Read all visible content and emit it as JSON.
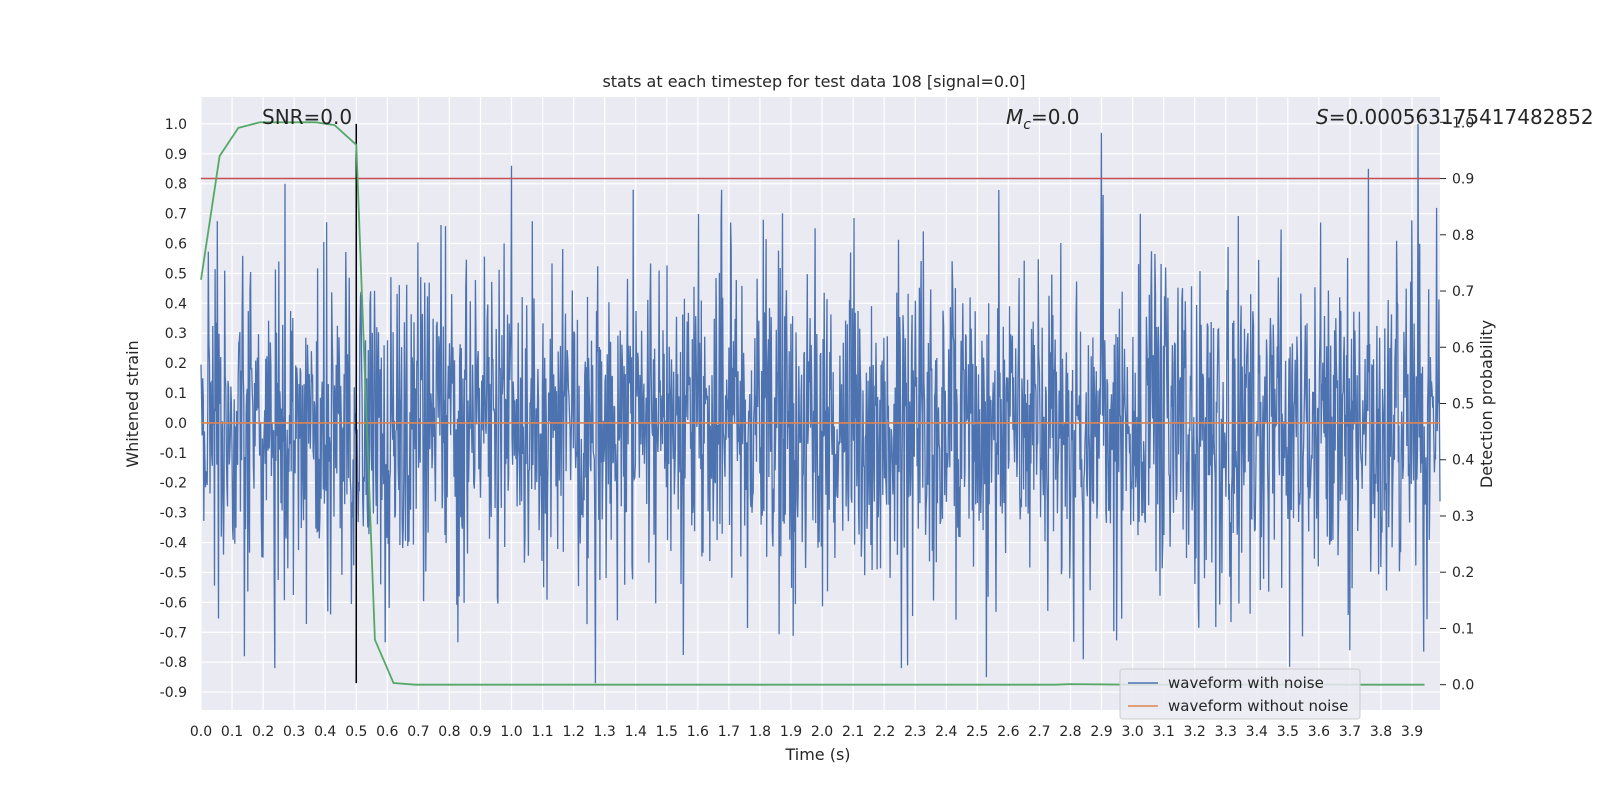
{
  "chart_data": {
    "type": "line",
    "title": "stats at each timestep for test data 108 [signal=0.0]",
    "xlabel": "Time (s)",
    "ylabel_left": "Whitened strain",
    "ylabel_right": "Detection probability",
    "xlim": [
      0.0,
      3.99
    ],
    "ylim_left": [
      -0.96,
      1.09
    ],
    "ylim_right": [
      -0.045,
      1.045
    ],
    "xticks": [
      "0.0",
      "0.1",
      "0.2",
      "0.3",
      "0.4",
      "0.5",
      "0.6",
      "0.7",
      "0.8",
      "0.9",
      "1.0",
      "1.1",
      "1.2",
      "1.3",
      "1.4",
      "1.5",
      "1.6",
      "1.7",
      "1.8",
      "1.9",
      "2.0",
      "2.1",
      "2.2",
      "2.3",
      "2.4",
      "2.5",
      "2.6",
      "2.7",
      "2.8",
      "2.9",
      "3.0",
      "3.1",
      "3.2",
      "3.3",
      "3.4",
      "3.5",
      "3.6",
      "3.7",
      "3.8",
      "3.9"
    ],
    "yticks_left": [
      "1.0",
      "0.9",
      "0.8",
      "0.7",
      "0.6",
      "0.5",
      "0.4",
      "0.3",
      "0.2",
      "0.1",
      "0.0",
      "-0.1",
      "-0.2",
      "-0.3",
      "-0.4",
      "-0.5",
      "-0.6",
      "-0.7",
      "-0.8",
      "-0.9"
    ],
    "yticks_right": [
      "1.0",
      "0.9",
      "0.8",
      "0.7",
      "0.6",
      "0.5",
      "0.4",
      "0.3",
      "0.2",
      "0.1",
      "0.0"
    ],
    "annotations": {
      "snr": "SNR=0.0",
      "mc_symbol": "M",
      "mc_sub": "c",
      "mc_value": "=0.0",
      "s_symbol": "S",
      "s_value": "=0.000563175417482852"
    },
    "vline_x": 0.5,
    "threshold_prob": 0.9,
    "legend": {
      "placement": "bottom-right",
      "entries": [
        "waveform with noise",
        "waveform without noise"
      ]
    },
    "series": [
      {
        "name": "waveform with noise",
        "color": "#4c72b0",
        "seed": 108,
        "num_points": 2200,
        "notable_peaks": [
          {
            "x": 0.27,
            "y": 0.8
          },
          {
            "x": 1.0,
            "y": 0.86
          },
          {
            "x": 2.9,
            "y": 0.97
          },
          {
            "x": 3.76,
            "y": 0.85
          },
          {
            "x": 3.92,
            "y": 1.0
          },
          {
            "x": 1.27,
            "y": -0.87
          },
          {
            "x": 2.53,
            "y": -0.85
          },
          {
            "x": 0.14,
            "y": -0.78
          },
          {
            "x": 3.7,
            "y": -0.76
          }
        ]
      },
      {
        "name": "waveform without noise",
        "color": "#dd8452",
        "x": [
          0.0,
          3.99
        ],
        "y": [
          0.0,
          0.0
        ]
      },
      {
        "name": "detection probability",
        "color": "#55a868",
        "axis": "right",
        "x": [
          0.0,
          0.06,
          0.12,
          0.19,
          0.25,
          0.31,
          0.37,
          0.43,
          0.5,
          0.56,
          0.62,
          0.69,
          0.75,
          1.0,
          2.0,
          2.75,
          2.8,
          3.0,
          3.5,
          3.94
        ],
        "y": [
          0.72,
          0.94,
          0.99,
          1.0,
          1.0,
          1.0,
          1.0,
          0.995,
          0.96,
          0.08,
          0.003,
          0.0,
          0.0,
          0.0,
          0.0,
          0.0,
          0.001,
          0.0,
          0.0,
          0.0
        ]
      }
    ]
  },
  "colors": {
    "axes_background": "#eaeaf2",
    "grid": "#ffffff",
    "threshold_line": "#c44e52",
    "vline": "#000000"
  }
}
